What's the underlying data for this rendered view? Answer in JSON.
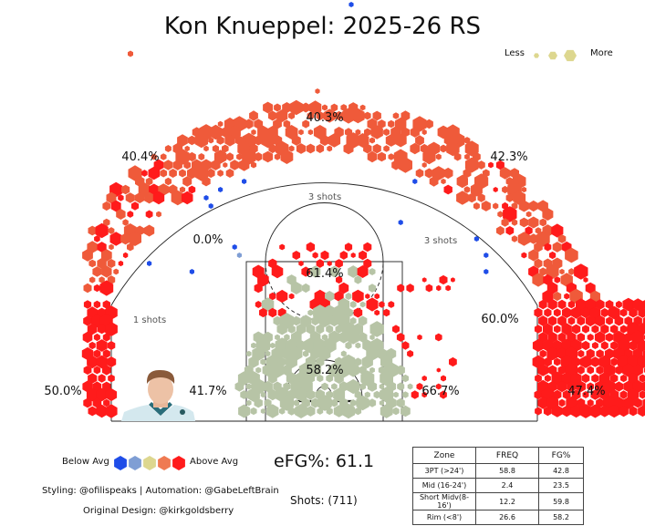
{
  "title": "Kon Knueppel: 2025-26 RS",
  "size_legend": {
    "less": "Less",
    "more": "More"
  },
  "color_legend": {
    "below": "Below Avg",
    "above": "Above Avg",
    "colors": [
      "#1f4de8",
      "#7f9ed4",
      "#ddd78f",
      "#ef7a52",
      "#ff1b1b"
    ]
  },
  "summary": {
    "efg": "eFG%: 61.1",
    "shots": "Shots: (711)"
  },
  "credits": {
    "styling": "Styling: @ofilispeaks | Automation: @GabeLeftBrain",
    "design": "Original Design: @kirkgoldsberry"
  },
  "table": {
    "headers": [
      "Zone",
      "FREQ",
      "FG%"
    ],
    "rows": [
      [
        "3PT (>24')",
        "58.8",
        "42.8"
      ],
      [
        "Mid (16-24')",
        "2.4",
        "23.5"
      ],
      [
        "Short Midv(8-16')",
        "12.2",
        "59.8"
      ],
      [
        "Rim (<8')",
        "26.6",
        "58.2"
      ]
    ]
  },
  "chart_data": {
    "type": "hexbin shot chart",
    "title": "Kon Knueppel: 2025-26 RS",
    "zone_labels": [
      {
        "zone": "left corner 3",
        "text": "50.0%"
      },
      {
        "zone": "left wing 3",
        "text": "40.4%"
      },
      {
        "zone": "top of key 3",
        "text": "40.3%"
      },
      {
        "zone": "right wing 3",
        "text": "42.3%"
      },
      {
        "zone": "right corner 3",
        "text": "47.4%"
      },
      {
        "zone": "left mid",
        "text": "0.0%"
      },
      {
        "zone": "left elbow mid",
        "text": "1 shots"
      },
      {
        "zone": "top mid",
        "text": "3 shots"
      },
      {
        "zone": "right elbow mid",
        "text": "3 shots"
      },
      {
        "zone": "paint top",
        "text": "61.4%"
      },
      {
        "zone": "left short mid",
        "text": "41.7%"
      },
      {
        "zone": "right short mid",
        "text": "66.7%"
      },
      {
        "zone": "right baseline mid",
        "text": "60.0%"
      },
      {
        "zone": "rim",
        "text": "58.2%"
      }
    ],
    "totals": {
      "efg_pct": 61.1,
      "shots": 711
    },
    "zones": [
      {
        "zone": "3PT (>24')",
        "freq": 58.8,
        "fg_pct": 42.8
      },
      {
        "zone": "Mid (16-24')",
        "freq": 2.4,
        "fg_pct": 23.5
      },
      {
        "zone": "Short Midv(8-16')",
        "freq": 12.2,
        "fg_pct": 59.8
      },
      {
        "zone": "Rim (<8')",
        "freq": 26.6,
        "fg_pct": 58.2
      }
    ]
  }
}
